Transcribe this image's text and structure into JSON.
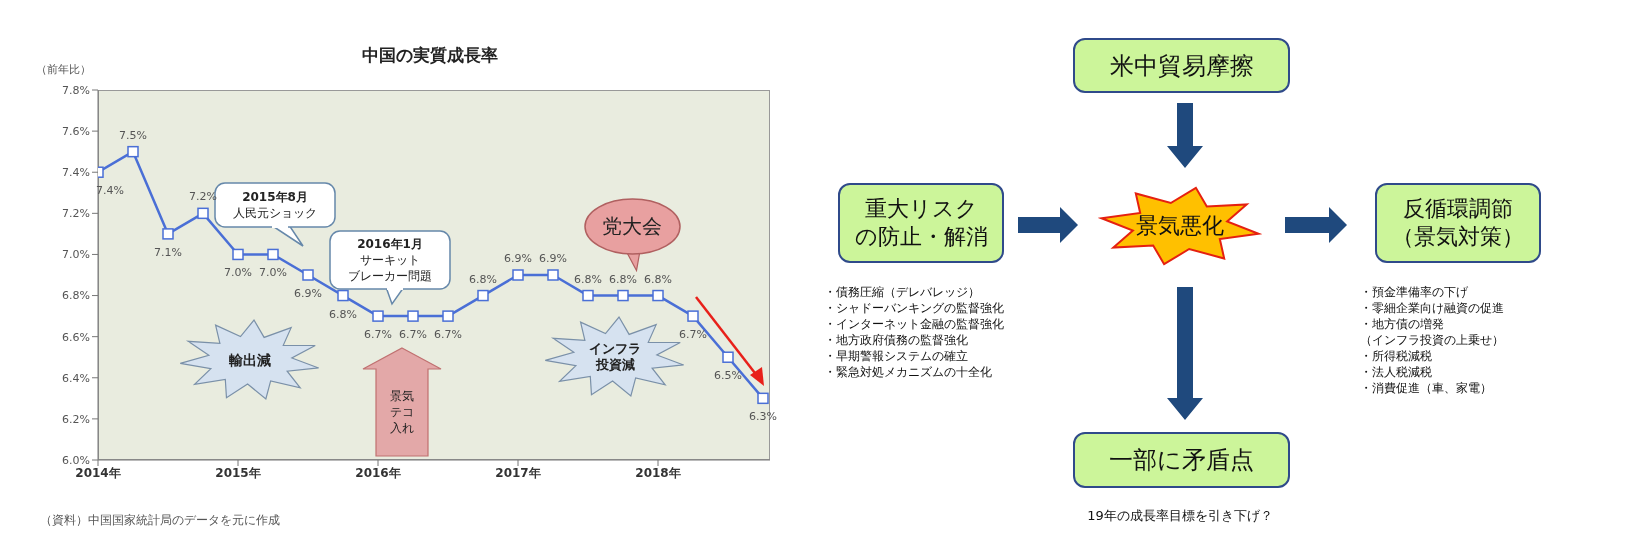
{
  "chart_data": [
    {
      "type": "line",
      "title": "中国の実質成長率",
      "ylabel": "（前年比）",
      "x": [
        2014,
        2014.25,
        2014.5,
        2014.75,
        2015,
        2015.25,
        2015.5,
        2015.75,
        2016,
        2016.25,
        2016.5,
        2016.75,
        2017,
        2017.25,
        2017.5,
        2017.75,
        2018,
        2018.25,
        2018.5,
        2018.75
      ],
      "series": [
        {
          "color": "#4a6fd6",
          "values": [
            7.4,
            7.5,
            7.1,
            7.2,
            7.0,
            7.0,
            6.9,
            6.8,
            6.7,
            6.7,
            6.7,
            6.8,
            6.9,
            6.9,
            6.8,
            6.8,
            6.8,
            6.7,
            6.5,
            6.3
          ],
          "value_labels": [
            "7.4%",
            "7.5%",
            "7.1%",
            "7.2%",
            "7.0%",
            "7.0%",
            "6.9%",
            "6.8%",
            "6.7%",
            "6.7%",
            "6.7%",
            "6.8%",
            "6.9%",
            "6.9%",
            "6.8%",
            "6.8%",
            "6.8%",
            "6.7%",
            "6.5%",
            "6.3%"
          ]
        }
      ],
      "xlim": [
        2014,
        2018.8
      ],
      "xticks": [
        {
          "value": 2014,
          "label": "2014年"
        },
        {
          "value": 2015,
          "label": "2015年"
        },
        {
          "value": 2016,
          "label": "2016年"
        },
        {
          "value": 2017,
          "label": "2017年"
        },
        {
          "value": 2018,
          "label": "2018年"
        }
      ],
      "ylim": [
        6.0,
        7.8
      ],
      "yticks": [
        {
          "value": 6.0,
          "label": "6.0%"
        },
        {
          "value": 6.2,
          "label": "6.2%"
        },
        {
          "value": 6.4,
          "label": "6.4%"
        },
        {
          "value": 6.6,
          "label": "6.6%"
        },
        {
          "value": 6.8,
          "label": "6.8%"
        },
        {
          "value": 7.0,
          "label": "7.0%"
        },
        {
          "value": 7.2,
          "label": "7.2%"
        },
        {
          "value": 7.4,
          "label": "7.4%"
        },
        {
          "value": 7.6,
          "label": "7.6%"
        },
        {
          "value": 7.8,
          "label": "7.8%"
        }
      ],
      "marker": "square",
      "line_style": "solid",
      "annotations": [
        "2015年8月人民元ショック",
        "2016年1月サーキットブレーカー問題",
        "党大会",
        "輸出減",
        "景気テコ入れ",
        "インフラ投資減",
        "（資料）中国国家統計局のデータを元に作成"
      ]
    },
    {
      "type": "other",
      "annotations": [
        "米中貿易摩擦",
        "重大リスクの防止・解消",
        "景気悪化",
        "反循環調節（景気対策）",
        "一部に矛盾点",
        "19年の成長率目標を引き下げ？",
        "・債務圧縮（デレバレッジ）",
        "・シャドーバンキングの監督強化",
        "・インターネット金融の監督強化",
        "・地方政府債務の監督強化",
        "・早期警報システムの確立",
        "・緊急対処メカニズムの十全化",
        "・預金準備率の下げ",
        "・零細企業向け融資の促進",
        "・地方債の増発",
        "（インフラ投資の上乗せ）",
        "・所得税減税",
        "・法人税減税",
        "・消費促進（車、家電）"
      ]
    }
  ]
}
